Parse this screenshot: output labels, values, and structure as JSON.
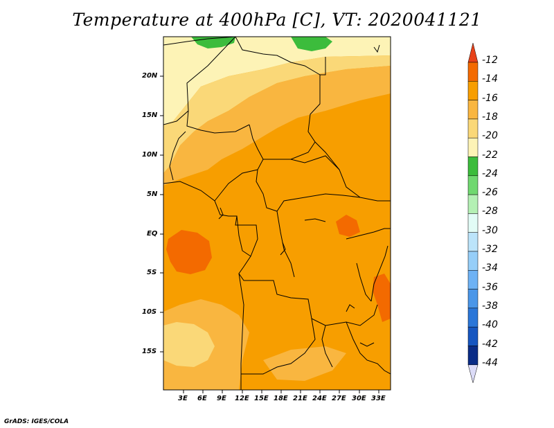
{
  "title": "Temperature at 400hPa [C], VT: 2020041121",
  "credit": "GrADS: IGES/COLA",
  "map": {
    "lat_labels": [
      "20N",
      "15N",
      "10N",
      "5N",
      "EQ",
      "5S",
      "10S",
      "15S"
    ],
    "lon_labels": [
      "3E",
      "6E",
      "9E",
      "12E",
      "15E",
      "18E",
      "21E",
      "24E",
      "27E",
      "30E",
      "33E"
    ]
  },
  "colorbar": {
    "labels": [
      "-12",
      "-14",
      "-16",
      "-18",
      "-20",
      "-22",
      "-24",
      "-26",
      "-28",
      "-30",
      "-32",
      "-34",
      "-36",
      "-38",
      "-40",
      "-42",
      "-44"
    ],
    "colors": [
      "#e8421a",
      "#f36a00",
      "#f79e00",
      "#f9b640",
      "#fad878",
      "#fdf3b6",
      "#3cbc3c",
      "#70d870",
      "#b4f0b4",
      "#e2fcf6",
      "#bce4fa",
      "#96cef8",
      "#6eb2f4",
      "#4a96e8",
      "#2a76d8",
      "#1656c0",
      "#0a2c86"
    ],
    "bottom_color": "#dcdcf8"
  }
}
